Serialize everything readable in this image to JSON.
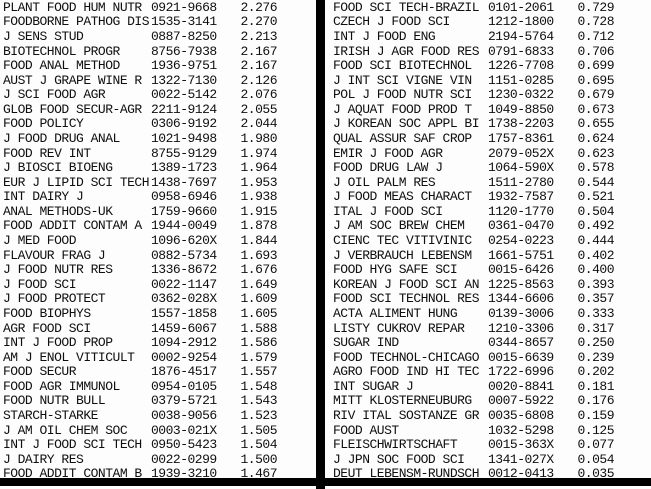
{
  "colors": {
    "background": "#fdfdfd",
    "text": "#0f0f0f",
    "divider_bar": "#000000"
  },
  "table": {
    "column_keys": [
      "journal",
      "issn",
      "impact_factor"
    ],
    "left_column": {
      "rows": [
        {
          "journal": "PLANT FOOD HUM NUTR",
          "issn": "0921-9668",
          "impact_factor": "2.276"
        },
        {
          "journal": "FOODBORNE PATHOG DIS",
          "issn": "1535-3141",
          "impact_factor": "2.270"
        },
        {
          "journal": "J SENS STUD",
          "issn": "0887-8250",
          "impact_factor": "2.213"
        },
        {
          "journal": "BIOTECHNOL PROGR",
          "issn": "8756-7938",
          "impact_factor": "2.167"
        },
        {
          "journal": "FOOD ANAL METHOD",
          "issn": "1936-9751",
          "impact_factor": "2.167"
        },
        {
          "journal": "AUST J GRAPE WINE R",
          "issn": "1322-7130",
          "impact_factor": "2.126"
        },
        {
          "journal": "J SCI FOOD AGR",
          "issn": "0022-5142",
          "impact_factor": "2.076"
        },
        {
          "journal": "GLOB FOOD SECUR-AGR",
          "issn": "2211-9124",
          "impact_factor": "2.055"
        },
        {
          "journal": "FOOD POLICY",
          "issn": "0306-9192",
          "impact_factor": "2.044"
        },
        {
          "journal": "J FOOD DRUG ANAL",
          "issn": "1021-9498",
          "impact_factor": "1.980"
        },
        {
          "journal": "FOOD REV INT",
          "issn": "8755-9129",
          "impact_factor": "1.974"
        },
        {
          "journal": "J BIOSCI BIOENG",
          "issn": "1389-1723",
          "impact_factor": "1.964"
        },
        {
          "journal": "EUR J LIPID SCI TECH",
          "issn": "1438-7697",
          "impact_factor": "1.953"
        },
        {
          "journal": "INT DAIRY J",
          "issn": "0958-6946",
          "impact_factor": "1.938"
        },
        {
          "journal": "ANAL METHODS-UK",
          "issn": "1759-9660",
          "impact_factor": "1.915"
        },
        {
          "journal": "FOOD ADDIT CONTAM A",
          "issn": "1944-0049",
          "impact_factor": "1.878"
        },
        {
          "journal": "J MED FOOD",
          "issn": "1096-620X",
          "impact_factor": "1.844"
        },
        {
          "journal": "FLAVOUR FRAG J",
          "issn": "0882-5734",
          "impact_factor": "1.693"
        },
        {
          "journal": "J FOOD NUTR RES",
          "issn": "1336-8672",
          "impact_factor": "1.676"
        },
        {
          "journal": "J FOOD SCI",
          "issn": "0022-1147",
          "impact_factor": "1.649"
        },
        {
          "journal": "J FOOD PROTECT",
          "issn": "0362-028X",
          "impact_factor": "1.609"
        },
        {
          "journal": "FOOD BIOPHYS",
          "issn": "1557-1858",
          "impact_factor": "1.605"
        },
        {
          "journal": "AGR FOOD SCI",
          "issn": "1459-6067",
          "impact_factor": "1.588"
        },
        {
          "journal": "INT J FOOD PROP",
          "issn": "1094-2912",
          "impact_factor": "1.586"
        },
        {
          "journal": "AM J ENOL VITICULT",
          "issn": "0002-9254",
          "impact_factor": "1.579"
        },
        {
          "journal": "FOOD SECUR",
          "issn": "1876-4517",
          "impact_factor": "1.557"
        },
        {
          "journal": "FOOD AGR IMMUNOL",
          "issn": "0954-0105",
          "impact_factor": "1.548"
        },
        {
          "journal": "FOOD NUTR BULL",
          "issn": "0379-5721",
          "impact_factor": "1.543"
        },
        {
          "journal": "STARCH-STARKE",
          "issn": "0038-9056",
          "impact_factor": "1.523"
        },
        {
          "journal": "J AM OIL CHEM SOC",
          "issn": "0003-021X",
          "impact_factor": "1.505"
        },
        {
          "journal": "INT J FOOD SCI TECH",
          "issn": "0950-5423",
          "impact_factor": "1.504"
        },
        {
          "journal": "J DAIRY RES",
          "issn": "0022-0299",
          "impact_factor": "1.500"
        },
        {
          "journal": "FOOD ADDIT CONTAM B",
          "issn": "1939-3210",
          "impact_factor": "1.467"
        }
      ]
    },
    "right_column": {
      "rows": [
        {
          "journal": "FOOD SCI TECH-BRAZIL",
          "issn": "0101-2061",
          "impact_factor": "0.729"
        },
        {
          "journal": "CZECH J FOOD SCI",
          "issn": "1212-1800",
          "impact_factor": "0.728"
        },
        {
          "journal": "INT J FOOD ENG",
          "issn": "2194-5764",
          "impact_factor": "0.712"
        },
        {
          "journal": "IRISH J AGR FOOD RES",
          "issn": "0791-6833",
          "impact_factor": "0.706"
        },
        {
          "journal": "FOOD SCI BIOTECHNOL",
          "issn": "1226-7708",
          "impact_factor": "0.699"
        },
        {
          "journal": "J INT SCI VIGNE VIN",
          "issn": "1151-0285",
          "impact_factor": "0.695"
        },
        {
          "journal": "POL J FOOD NUTR SCI",
          "issn": "1230-0322",
          "impact_factor": "0.679"
        },
        {
          "journal": "J AQUAT FOOD PROD T",
          "issn": "1049-8850",
          "impact_factor": "0.673"
        },
        {
          "journal": "J KOREAN SOC APPL BI",
          "issn": "1738-2203",
          "impact_factor": "0.655"
        },
        {
          "journal": "QUAL ASSUR SAF CROP",
          "issn": "1757-8361",
          "impact_factor": "0.624"
        },
        {
          "journal": "EMIR J FOOD AGR",
          "issn": "2079-052X",
          "impact_factor": "0.623"
        },
        {
          "journal": "FOOD DRUG LAW J",
          "issn": "1064-590X",
          "impact_factor": "0.578"
        },
        {
          "journal": "J OIL PALM RES",
          "issn": "1511-2780",
          "impact_factor": "0.544"
        },
        {
          "journal": "J FOOD MEAS CHARACT",
          "issn": "1932-7587",
          "impact_factor": "0.521"
        },
        {
          "journal": "ITAL J FOOD SCI",
          "issn": "1120-1770",
          "impact_factor": "0.504"
        },
        {
          "journal": "J AM SOC BREW CHEM",
          "issn": "0361-0470",
          "impact_factor": "0.492"
        },
        {
          "journal": "CIENC TEC VITIVINIC",
          "issn": "0254-0223",
          "impact_factor": "0.444"
        },
        {
          "journal": "J VERBRAUCH LEBENSM",
          "issn": "1661-5751",
          "impact_factor": "0.402"
        },
        {
          "journal": "FOOD HYG SAFE SCI",
          "issn": "0015-6426",
          "impact_factor": "0.400"
        },
        {
          "journal": "KOREAN J FOOD SCI AN",
          "issn": "1225-8563",
          "impact_factor": "0.393"
        },
        {
          "journal": "FOOD SCI TECHNOL RES",
          "issn": "1344-6606",
          "impact_factor": "0.357"
        },
        {
          "journal": "ACTA ALIMENT HUNG",
          "issn": "0139-3006",
          "impact_factor": "0.333"
        },
        {
          "journal": "LISTY CUKROV REPAR",
          "issn": "1210-3306",
          "impact_factor": "0.317"
        },
        {
          "journal": "SUGAR IND",
          "issn": "0344-8657",
          "impact_factor": "0.250"
        },
        {
          "journal": "FOOD TECHNOL-CHICAGO",
          "issn": "0015-6639",
          "impact_factor": "0.239"
        },
        {
          "journal": "AGRO FOOD IND HI TEC",
          "issn": "1722-6996",
          "impact_factor": "0.202"
        },
        {
          "journal": "INT SUGAR J",
          "issn": "0020-8841",
          "impact_factor": "0.181"
        },
        {
          "journal": "MITT KLOSTERNEUBURG",
          "issn": "0007-5922",
          "impact_factor": "0.176"
        },
        {
          "journal": "RIV ITAL SOSTANZE GR",
          "issn": "0035-6808",
          "impact_factor": "0.159"
        },
        {
          "journal": "FOOD AUST",
          "issn": "1032-5298",
          "impact_factor": "0.125"
        },
        {
          "journal": "FLEISCHWIRTSCHAFT",
          "issn": "0015-363X",
          "impact_factor": "0.077"
        },
        {
          "journal": "J JPN SOC FOOD SCI",
          "issn": "1341-027X",
          "impact_factor": "0.054"
        },
        {
          "journal": "DEUT LEBENSM-RUNDSCH",
          "issn": "0012-0413",
          "impact_factor": "0.035"
        }
      ]
    }
  }
}
